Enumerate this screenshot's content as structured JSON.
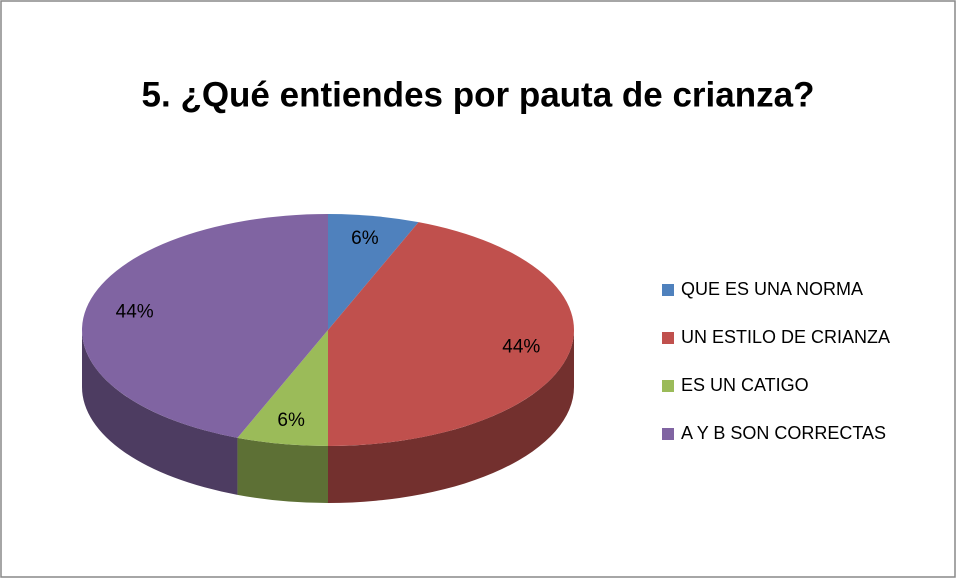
{
  "chart_data": {
    "type": "pie",
    "title": "5. ¿Qué entiendes por pauta de crianza?",
    "categories": [
      "QUE ES UNA NORMA",
      "UN ESTILO DE CRIANZA",
      "ES UN CATIGO",
      "A Y B SON CORRECTAS"
    ],
    "values": [
      6,
      44,
      6,
      44
    ],
    "value_labels": [
      "6%",
      "44%",
      "6%",
      "44%"
    ],
    "colors": [
      "#4f81bd",
      "#c0504d",
      "#9bbb59",
      "#8064a2"
    ],
    "legend": "right"
  }
}
